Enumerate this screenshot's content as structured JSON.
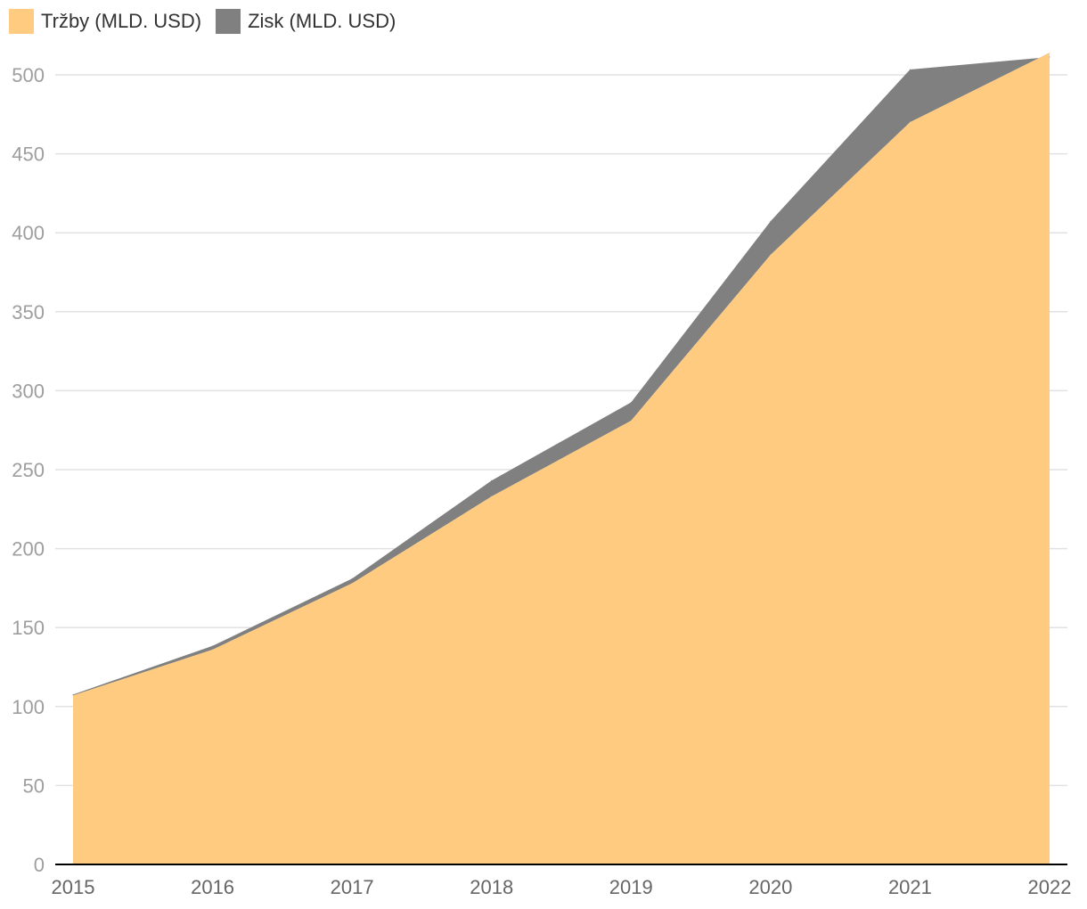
{
  "legend": {
    "series_0": "Tržby (MLD. USD)",
    "series_1": "Zisk (MLD. USD)"
  },
  "colors": {
    "revenue": "#fecb80",
    "profit": "#808080",
    "grid": "#e2e2e2",
    "axis": "#000000"
  },
  "chart_data": {
    "type": "area",
    "stacked": true,
    "x": [
      "2015",
      "2016",
      "2017",
      "2018",
      "2019",
      "2020",
      "2021",
      "2022"
    ],
    "series": [
      {
        "name": "Tržby (MLD. USD)",
        "values": [
          107,
          136,
          178,
          233,
          281,
          386,
          470,
          514
        ]
      },
      {
        "name": "Zisk (MLD. USD)",
        "values": [
          0.6,
          2.4,
          3.0,
          10.1,
          11.6,
          21.3,
          33.4,
          -2.7
        ]
      }
    ],
    "y_ticks": [
      "0",
      "50",
      "100",
      "150",
      "200",
      "250",
      "300",
      "350",
      "400",
      "450",
      "500"
    ],
    "ylim": [
      0,
      500
    ],
    "grid": true,
    "legend_position": "top-left"
  }
}
